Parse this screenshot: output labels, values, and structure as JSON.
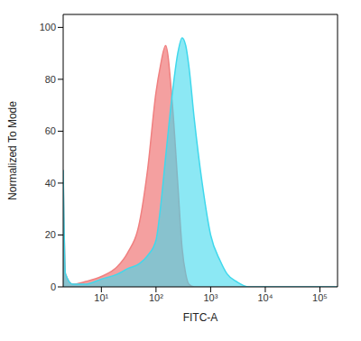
{
  "chart_data": {
    "type": "area",
    "x_label": "FITC-A",
    "y_label": "Normalized To Mode",
    "log": "x",
    "grid": false,
    "xlim": [
      2,
      210000
    ],
    "xticks": [
      {
        "value": 10,
        "label": "10¹"
      },
      {
        "value": 100,
        "label": "10²"
      },
      {
        "value": 1000,
        "label": "10³"
      },
      {
        "value": 10000,
        "label": "10⁴"
      },
      {
        "value": 100000,
        "label": "10⁵"
      }
    ],
    "ylim": [
      0,
      105
    ],
    "yticks": [
      0,
      20,
      40,
      60,
      80,
      100
    ],
    "x": [
      2,
      2.2,
      3,
      5,
      10,
      20,
      30,
      50,
      70,
      100,
      120,
      150,
      200,
      250,
      300,
      350,
      400,
      500,
      700,
      1000,
      1500,
      2000,
      3000,
      5000,
      10000,
      210000
    ],
    "series": [
      {
        "color": "#f08080",
        "values": [
          45,
          5,
          1,
          2,
          4,
          8,
          13,
          25,
          45,
          75,
          85,
          93,
          70,
          40,
          15,
          5,
          1,
          0,
          0,
          0,
          0,
          0,
          0,
          0,
          0,
          0
        ]
      },
      {
        "color": "#40d8ec",
        "values": [
          45,
          5,
          1,
          1,
          3,
          5,
          7,
          9,
          12,
          18,
          30,
          50,
          75,
          90,
          96,
          93,
          85,
          65,
          40,
          20,
          10,
          5,
          2,
          0,
          0,
          0
        ]
      }
    ]
  }
}
